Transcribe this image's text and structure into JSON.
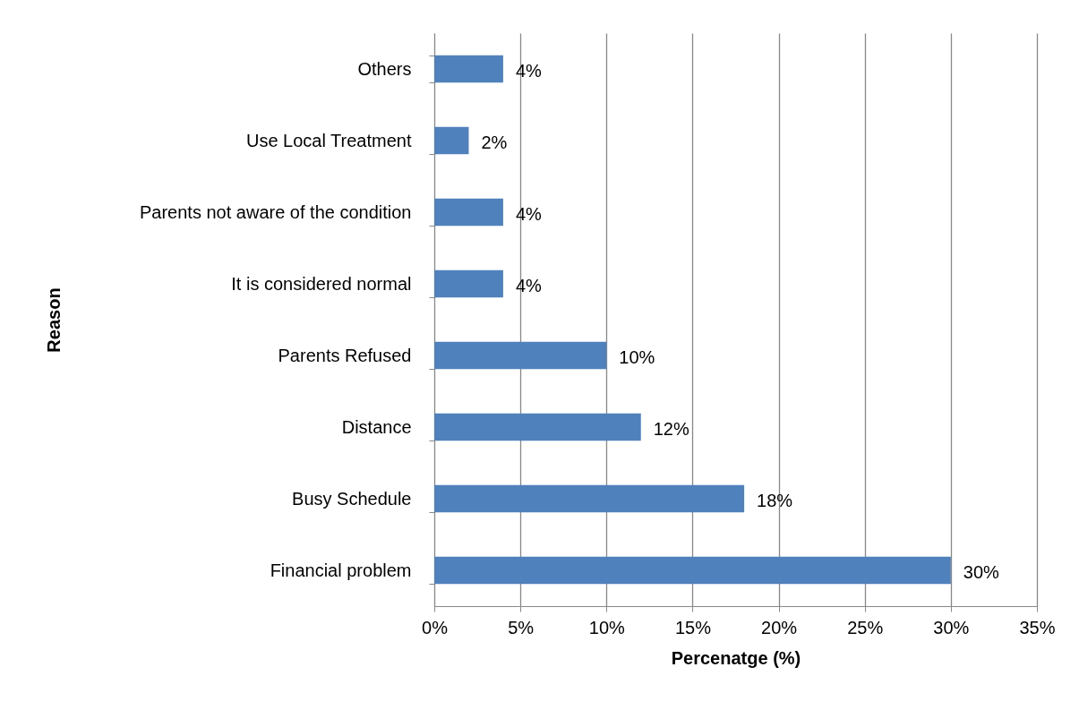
{
  "chart_data": {
    "type": "bar",
    "orientation": "horizontal",
    "xlabel": "Percenatge (%)",
    "ylabel": "Reason",
    "categories": [
      "Others",
      "Use Local Treatment",
      "Parents not aware of the condition",
      "It is considered normal",
      "Parents Refused",
      "Distance",
      "Busy Schedule",
      "Financial problem"
    ],
    "values": [
      4,
      2,
      4,
      4,
      10,
      12,
      18,
      30
    ],
    "value_labels": [
      "4%",
      "2%",
      "4%",
      "4%",
      "10%",
      "12%",
      "18%",
      "30%"
    ],
    "color": "#4f81bd",
    "xlim": [
      0,
      35
    ],
    "xticks": [
      {
        "value": 0,
        "label": "0%"
      },
      {
        "value": 5,
        "label": "5%"
      },
      {
        "value": 10,
        "label": "10%"
      },
      {
        "value": 15,
        "label": "15%"
      },
      {
        "value": 20,
        "label": "20%"
      },
      {
        "value": 25,
        "label": "25%"
      },
      {
        "value": 30,
        "label": "30%"
      },
      {
        "value": 35,
        "label": "35%"
      }
    ],
    "grid": "x"
  }
}
